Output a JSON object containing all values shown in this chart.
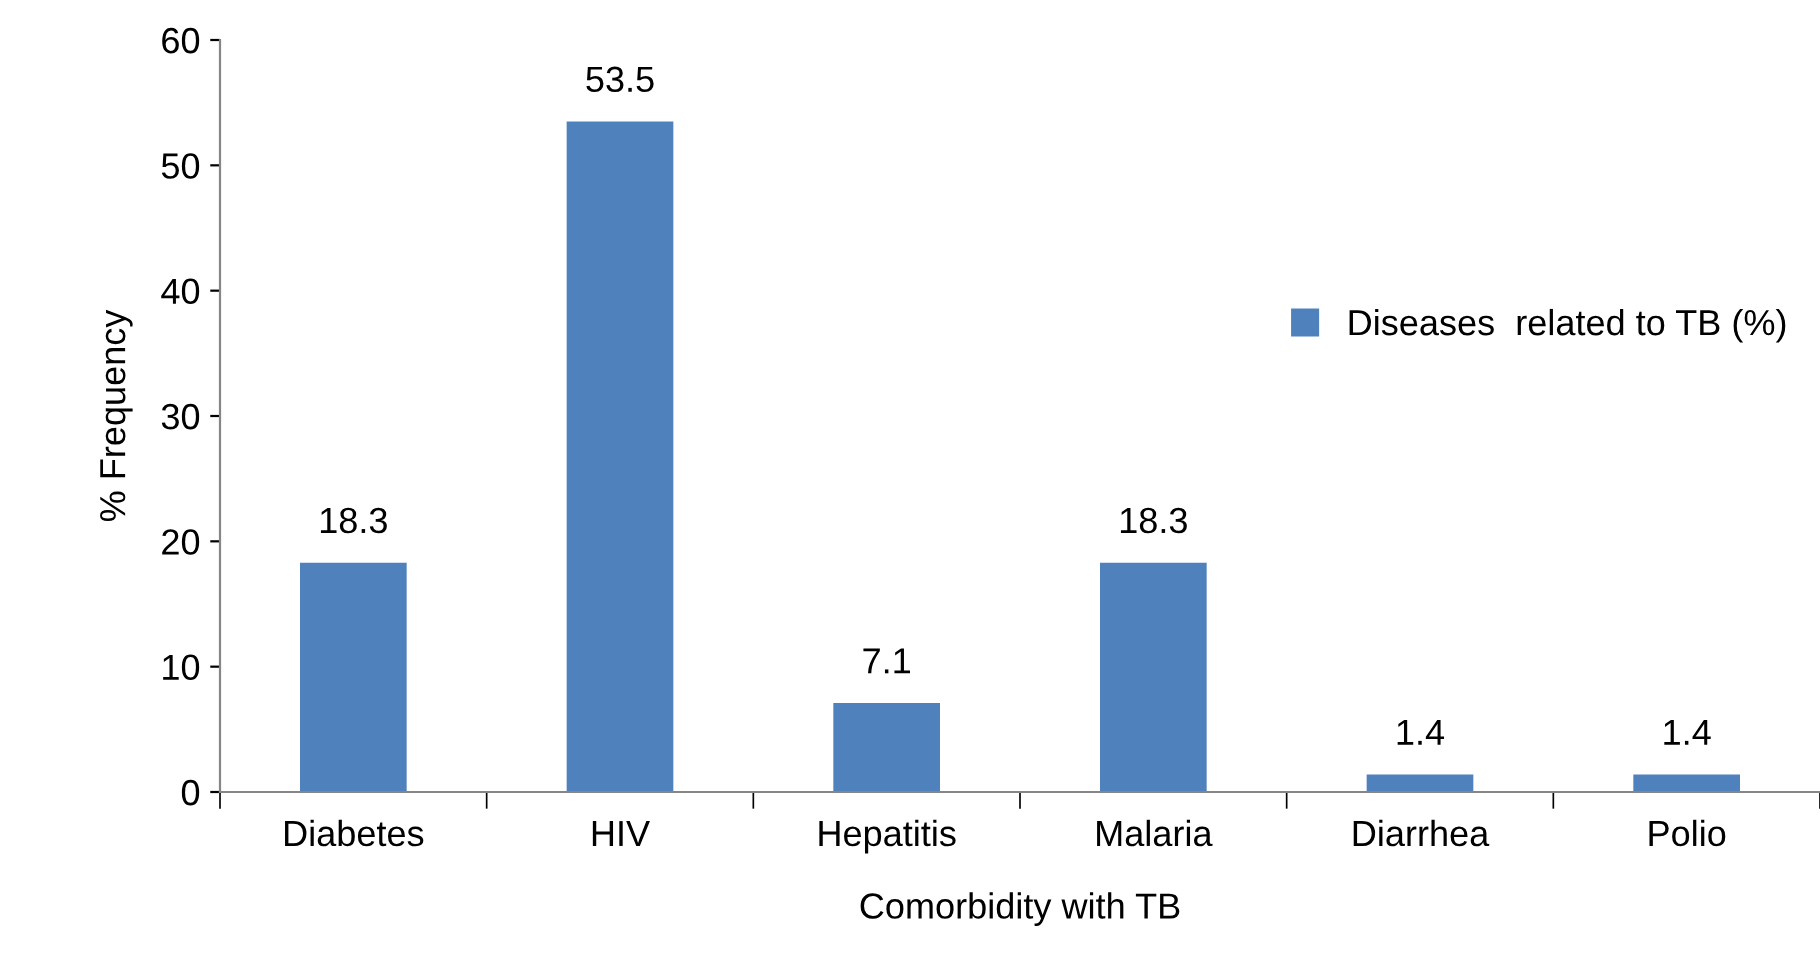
{
  "chart_data": {
    "type": "bar",
    "xlabel": "Comorbidity with TB",
    "ylabel": "% Frequency",
    "categories": [
      "Diabetes",
      "HIV",
      "Hepatitis",
      "Malaria",
      "Diarrhea",
      "Polio"
    ],
    "series": [
      {
        "name": "Diseases  related to TB (%)",
        "color": "#4f81bd",
        "values": [
          18.3,
          53.5,
          7.1,
          18.3,
          1.4,
          1.4
        ]
      }
    ],
    "ylim": [
      0,
      60
    ],
    "yticks": [
      0,
      10,
      20,
      30,
      40,
      50,
      60
    ],
    "data_labels": true,
    "legend": "right",
    "grid": false
  }
}
